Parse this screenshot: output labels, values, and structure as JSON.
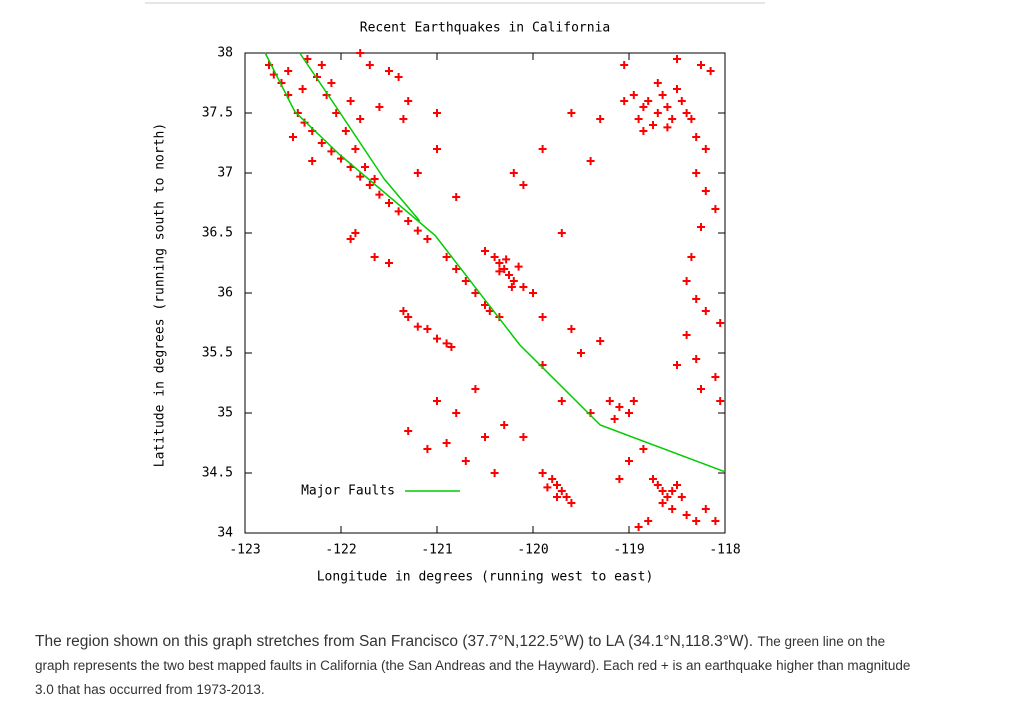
{
  "chart_data": {
    "type": "scatter",
    "title": "Recent Earthquakes in California",
    "x_label": "Longitude in degrees (running west to east)",
    "y_label": "Latitude in degrees (running south to north)",
    "xlim": [
      -123,
      -118
    ],
    "ylim": [
      34,
      38
    ],
    "xticks": [
      -123,
      -122,
      -121,
      -120,
      -119,
      -118
    ],
    "yticks": [
      34,
      34.5,
      35,
      35.5,
      36,
      36.5,
      37,
      37.5,
      38
    ],
    "series": [
      {
        "color": "#ff0000",
        "marker": "plus",
        "x": [
          -122.75,
          -122.7,
          -122.62,
          -122.55,
          -122.45,
          -122.38,
          -122.3,
          -122.2,
          -122.1,
          -122.0,
          -121.9,
          -121.8,
          -121.7,
          -121.6,
          -121.5,
          -121.4,
          -121.3,
          -121.2,
          -121.1,
          -121.65,
          -121.75,
          -121.85,
          -121.95,
          -122.05,
          -122.15,
          -122.25,
          -122.35,
          -122.2,
          -122.1,
          -121.9,
          -121.8,
          -122.55,
          -122.4,
          -120.9,
          -120.8,
          -120.7,
          -120.6,
          -120.5,
          -120.45,
          -120.35,
          -120.5,
          -120.4,
          -120.35,
          -120.3,
          -120.25,
          -120.2,
          -120.1,
          -120.0,
          -120.35,
          -120.28,
          -120.15,
          -120.22,
          -121.35,
          -121.3,
          -121.2,
          -121.1,
          -121.0,
          -120.9,
          -120.85,
          -121.9,
          -121.85,
          -121.65,
          -121.5,
          -122.5,
          -122.3,
          -121.0,
          -121.3,
          -121.2,
          -120.8,
          -121.8,
          -121.7,
          -121.5,
          -121.4,
          -121.6,
          -121.35,
          -121.0,
          -120.2,
          -119.9,
          -120.1,
          -119.6,
          -119.4,
          -119.7,
          -119.9,
          -119.6,
          -119.5,
          -119.3,
          -119.9,
          -119.7,
          -119.4,
          -120.6,
          -120.8,
          -120.5,
          -120.3,
          -120.1,
          -121.3,
          -121.1,
          -120.9,
          -121.0,
          -120.7,
          -120.4,
          -119.9,
          -119.8,
          -119.75,
          -119.7,
          -119.65,
          -119.6,
          -119.75,
          -119.85,
          -119.2,
          -119.1,
          -119.0,
          -119.15,
          -118.95,
          -119.05,
          -118.95,
          -118.85,
          -118.8,
          -118.7,
          -118.6,
          -118.55,
          -118.45,
          -118.4,
          -118.35,
          -118.9,
          -118.75,
          -118.65,
          -118.5,
          -118.85,
          -118.6,
          -118.3,
          -118.2,
          -118.25,
          -118.15,
          -118.5,
          -119.05,
          -118.7,
          -119.3,
          -118.3,
          -118.2,
          -118.1,
          -118.25,
          -118.35,
          -118.4,
          -118.3,
          -118.2,
          -118.05,
          -118.4,
          -118.3,
          -118.1,
          -118.25,
          -118.05,
          -118.5,
          -118.75,
          -118.7,
          -118.65,
          -118.6,
          -118.55,
          -118.5,
          -118.45,
          -118.65,
          -118.55,
          -118.4,
          -118.3,
          -118.2,
          -118.1,
          -118.8,
          -118.9,
          -119.0,
          -118.85,
          -119.1
        ],
        "y": [
          37.9,
          37.82,
          37.75,
          37.65,
          37.5,
          37.42,
          37.35,
          37.25,
          37.18,
          37.12,
          37.05,
          36.97,
          36.9,
          36.82,
          36.75,
          36.68,
          36.6,
          36.52,
          36.45,
          36.95,
          37.05,
          37.2,
          37.35,
          37.5,
          37.65,
          37.8,
          37.95,
          37.9,
          37.75,
          37.6,
          37.45,
          37.85,
          37.7,
          36.3,
          36.2,
          36.1,
          36.0,
          35.9,
          35.85,
          35.8,
          36.35,
          36.3,
          36.25,
          36.2,
          36.15,
          36.1,
          36.05,
          36.0,
          36.18,
          36.28,
          36.22,
          36.05,
          35.85,
          35.8,
          35.72,
          35.7,
          35.62,
          35.58,
          35.55,
          36.45,
          36.5,
          36.3,
          36.25,
          37.3,
          37.1,
          37.5,
          37.6,
          37.0,
          36.8,
          38.0,
          37.9,
          37.85,
          37.8,
          37.55,
          37.45,
          37.2,
          37.0,
          37.2,
          36.9,
          37.5,
          37.1,
          36.5,
          35.8,
          35.7,
          35.5,
          35.6,
          35.4,
          35.1,
          35.0,
          35.2,
          35.0,
          34.8,
          34.9,
          34.8,
          34.85,
          34.7,
          34.75,
          35.1,
          34.6,
          34.5,
          34.5,
          34.45,
          34.4,
          34.35,
          34.3,
          34.25,
          34.3,
          34.38,
          35.1,
          35.05,
          35.0,
          34.95,
          35.1,
          37.6,
          37.65,
          37.55,
          37.6,
          37.5,
          37.55,
          37.45,
          37.6,
          37.5,
          37.45,
          37.45,
          37.4,
          37.65,
          37.7,
          37.35,
          37.38,
          37.3,
          37.2,
          37.9,
          37.85,
          37.95,
          37.9,
          37.75,
          37.45,
          37.0,
          36.85,
          36.7,
          36.55,
          36.3,
          36.1,
          35.95,
          35.85,
          35.75,
          35.65,
          35.45,
          35.3,
          35.2,
          35.1,
          35.4,
          34.45,
          34.4,
          34.35,
          34.3,
          34.35,
          34.4,
          34.3,
          34.25,
          34.2,
          34.15,
          34.1,
          34.2,
          34.1,
          34.1,
          34.05,
          34.6,
          34.7,
          34.45
        ]
      },
      {
        "name": "Major Faults",
        "type": "line",
        "color": "#00cc00",
        "x": [
          -122.79,
          -122.48,
          -122.01,
          -121.02,
          -120.14,
          -119.3,
          -118.0,
          null,
          -122.43,
          -122.05,
          -121.55,
          -121.18
        ],
        "y": [
          38.0,
          37.51,
          37.15,
          36.48,
          35.57,
          34.9,
          34.51,
          null,
          38.0,
          37.55,
          36.95,
          36.6
        ]
      }
    ],
    "legend": "bottom-left"
  },
  "caption": [
    "The region shown on this graph stretches from San Francisco (37.7°N,122.5°W) to LA (34.1°N,118.3°W).",
    "The green line on the graph represents the two best mapped faults in California (the San Andreas and the Hayward).  Each red + is an earthquake higher than magnitude 3.0 that has occurred from 1973-2013."
  ]
}
